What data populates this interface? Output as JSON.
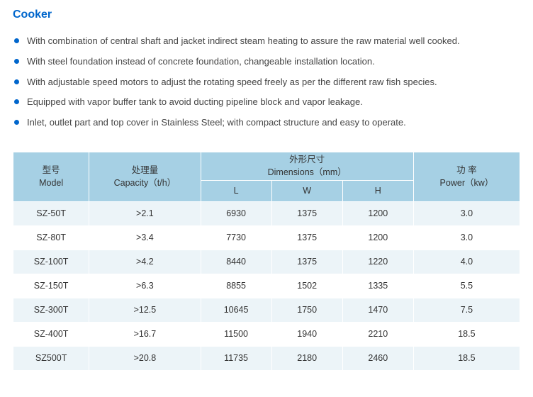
{
  "title": "Cooker",
  "features": [
    "With combination of central shaft and jacket indirect steam heating to assure the raw material well cooked.",
    "With steel foundation instead of concrete foundation, changeable installation location.",
    "With adjustable speed motors to adjust the rotating speed freely as per the different raw fish species.",
    "Equipped with vapor buffer tank to avoid ducting pipeline block and vapor leakage.",
    "Inlet, outlet part and top cover in Stainless Steel; with compact structure and easy to operate."
  ],
  "table": {
    "header": {
      "model_cn": "型号",
      "model_en": "Model",
      "capacity_cn": "处理量",
      "capacity_en": "Capacity（t/h）",
      "dims_cn": "外形尺寸",
      "dims_en": "Dimensions（mm）",
      "dim_l": "L",
      "dim_w": "W",
      "dim_h": "H",
      "power_cn": "功 率",
      "power_en": "Power（kw）"
    },
    "rows": [
      {
        "model": "SZ-50T",
        "capacity": ">2.1",
        "l": "6930",
        "w": "1375",
        "h": "1200",
        "power": "3.0"
      },
      {
        "model": "SZ-80T",
        "capacity": ">3.4",
        "l": "7730",
        "w": "1375",
        "h": "1200",
        "power": "3.0"
      },
      {
        "model": "SZ-100T",
        "capacity": ">4.2",
        "l": "8440",
        "w": "1375",
        "h": "1220",
        "power": "4.0"
      },
      {
        "model": "SZ-150T",
        "capacity": ">6.3",
        "l": "8855",
        "w": "1502",
        "h": "1335",
        "power": "5.5"
      },
      {
        "model": "SZ-300T",
        "capacity": ">12.5",
        "l": "10645",
        "w": "1750",
        "h": "1470",
        "power": "7.5"
      },
      {
        "model": "SZ-400T",
        "capacity": ">16.7",
        "l": "11500",
        "w": "1940",
        "h": "2210",
        "power": "18.5"
      },
      {
        "model": "SZ500T",
        "capacity": ">20.8",
        "l": "11735",
        "w": "2180",
        "h": "2460",
        "power": "18.5"
      }
    ]
  },
  "colors": {
    "accent": "#0066cc",
    "header_bg": "#a6d0e4",
    "row_odd_bg": "#ecf4f8",
    "row_even_bg": "#ffffff",
    "border": "#ffffff"
  }
}
